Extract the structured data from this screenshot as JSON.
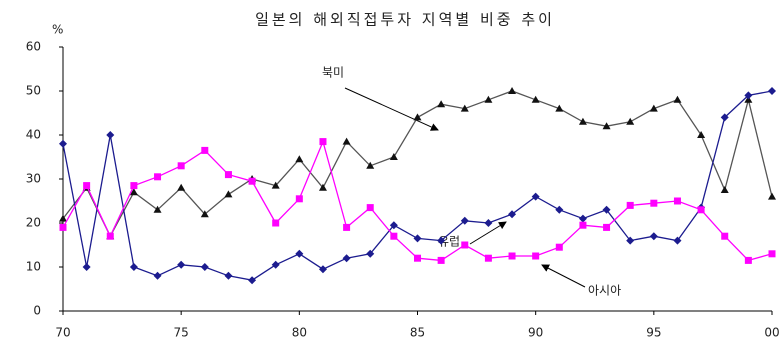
{
  "chart_data": {
    "type": "line",
    "title": "일본의 해외직접투자 지역별 비중 추이",
    "y_unit": "%",
    "annotations": [
      "북미",
      "유럽",
      "아시아"
    ],
    "x": [
      70,
      71,
      72,
      73,
      74,
      75,
      76,
      77,
      78,
      79,
      80,
      81,
      82,
      83,
      84,
      85,
      86,
      87,
      88,
      89,
      90,
      91,
      92,
      93,
      94,
      95,
      96,
      97,
      98,
      99,
      100
    ],
    "series": [
      {
        "name": "북미",
        "color": "#555555",
        "marker": "triangle",
        "values": [
          21,
          28,
          17,
          27,
          23,
          28,
          22,
          26.5,
          30,
          28.5,
          34.5,
          28,
          38.5,
          33,
          35,
          44,
          47,
          46,
          48,
          50,
          48,
          46,
          43,
          42,
          43,
          46,
          48,
          40,
          27.5,
          48,
          26
        ]
      },
      {
        "name": "유럽",
        "color": "#1c1c8f",
        "marker": "diamond",
        "values": [
          38,
          10,
          40,
          10,
          8,
          10.5,
          10,
          8,
          7,
          10.5,
          13,
          9.5,
          12,
          13,
          19.5,
          16.5,
          16,
          20.5,
          20,
          22,
          26,
          23,
          21,
          23,
          16,
          17,
          16,
          23.5,
          44,
          49,
          50
        ]
      },
      {
        "name": "아시아",
        "color": "#ff00ff",
        "marker": "square",
        "values": [
          19,
          28.5,
          17,
          28.5,
          30.5,
          33,
          36.5,
          31,
          29.5,
          20,
          25.5,
          38.5,
          19,
          23.5,
          17,
          12,
          11.5,
          15,
          12,
          12.5,
          12.5,
          14.5,
          19.5,
          19,
          24,
          24.5,
          25,
          23,
          17,
          11.5,
          13
        ]
      }
    ],
    "xlim": [
      70,
      100
    ],
    "xticks": [
      70,
      75,
      80,
      85,
      90,
      95,
      {
        "value": 100,
        "label": "00"
      }
    ],
    "ylim": [
      0,
      60
    ],
    "yticks": [
      0,
      10,
      20,
      30,
      40,
      50,
      60
    ],
    "grid": false
  }
}
